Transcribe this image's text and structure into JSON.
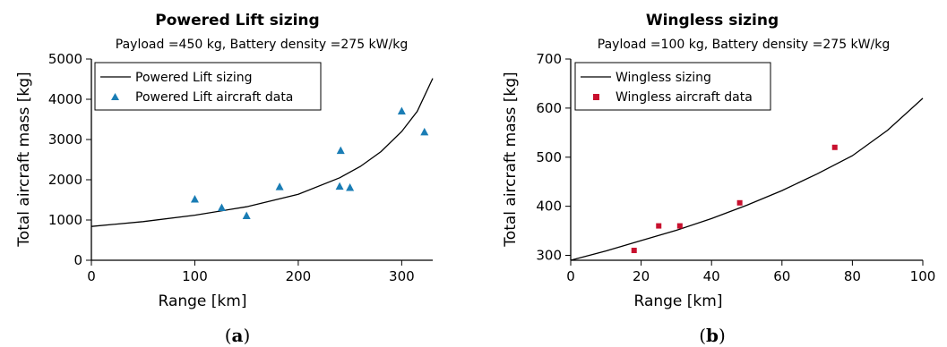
{
  "chart_data": [
    {
      "type": "scatter",
      "title": "Powered Lift sizing",
      "subtitle": "Payload =450 kg, Battery density =275 kW/kg",
      "xlabel": "Range [km]",
      "ylabel": "Total aircraft mass [kg]",
      "xlim": [
        0,
        330
      ],
      "ylim": [
        0,
        5000
      ],
      "xticks": [
        "0",
        "100",
        "200",
        "300"
      ],
      "yticks": [
        "0",
        "1000",
        "2000",
        "3000",
        "4000",
        "5000"
      ],
      "xtick_values": [
        0,
        100,
        200,
        300
      ],
      "ytick_values": [
        0,
        1000,
        2000,
        3000,
        4000,
        5000
      ],
      "legend_position": "top-left",
      "grid": false,
      "panel_label": {
        "open": "(",
        "letter": "a",
        "close": ")"
      },
      "series": [
        {
          "name": "Powered Lift sizing",
          "kind": "line",
          "color": "#000000",
          "x": [
            0,
            50,
            100,
            150,
            200,
            240,
            260,
            280,
            300,
            315,
            330
          ],
          "y": [
            840,
            960,
            1120,
            1330,
            1640,
            2050,
            2330,
            2700,
            3200,
            3700,
            4520
          ]
        },
        {
          "name": "Powered Lift aircraft data",
          "kind": "scatter",
          "marker": "triangle",
          "color": "#1a7db5",
          "x": [
            100,
            126,
            150,
            182,
            240,
            241,
            250,
            300,
            322
          ],
          "y": [
            1510,
            1300,
            1100,
            1820,
            1830,
            2720,
            1800,
            3700,
            3180
          ]
        }
      ]
    },
    {
      "type": "scatter",
      "title": "Wingless sizing",
      "subtitle": "Payload =100 kg, Battery density =275 kW/kg",
      "xlabel": "Range [km]",
      "ylabel": "Total aircraft mass [kg]",
      "xlim": [
        0,
        100
      ],
      "ylim": [
        290,
        700
      ],
      "xticks": [
        "0",
        "20",
        "40",
        "60",
        "80",
        "100"
      ],
      "yticks": [
        "300",
        "400",
        "500",
        "600",
        "700"
      ],
      "xtick_values": [
        0,
        20,
        40,
        60,
        80,
        100
      ],
      "ytick_values": [
        300,
        400,
        500,
        600,
        700
      ],
      "legend_position": "top-left",
      "grid": false,
      "panel_label": {
        "open": "(",
        "letter": "b",
        "close": ")"
      },
      "series": [
        {
          "name": "Wingless sizing",
          "kind": "line",
          "color": "#000000",
          "x": [
            0,
            10,
            20,
            30,
            40,
            50,
            60,
            70,
            80,
            90,
            100
          ],
          "y": [
            290,
            309,
            330,
            351,
            375,
            402,
            432,
            466,
            503,
            555,
            620
          ]
        },
        {
          "name": "Wingless aircraft data",
          "kind": "scatter",
          "marker": "square",
          "color": "#c8102e",
          "x": [
            18,
            25,
            31,
            48,
            75
          ],
          "y": [
            310,
            360,
            360,
            407,
            520
          ]
        }
      ]
    }
  ]
}
